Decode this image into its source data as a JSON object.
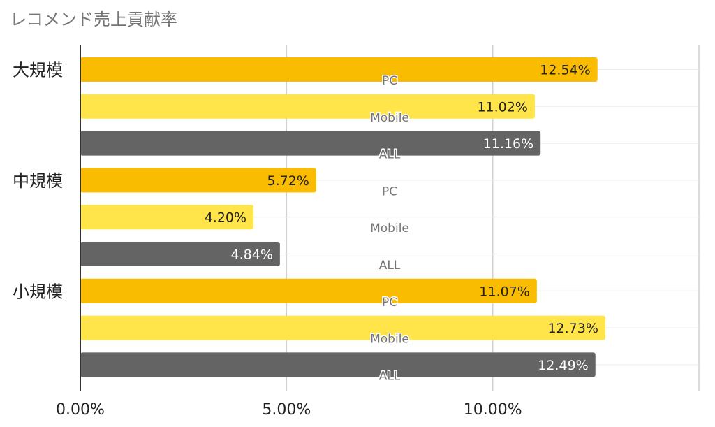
{
  "title": "レコメンド売上貢献率",
  "colors": {
    "PC": "#f9bc00",
    "Mobile": "#ffe44a",
    "ALL": "#646464"
  },
  "chart_data": {
    "type": "bar",
    "orientation": "horizontal",
    "title": "レコメンド売上貢献率",
    "categories": [
      "大規模",
      "中規模",
      "小規模"
    ],
    "series": [
      {
        "name": "PC",
        "values": [
          12.54,
          5.72,
          11.07
        ]
      },
      {
        "name": "Mobile",
        "values": [
          11.02,
          4.2,
          12.73
        ]
      },
      {
        "name": "ALL",
        "values": [
          11.16,
          4.84,
          12.49
        ]
      }
    ],
    "value_labels": [
      [
        "12.54%",
        "11.02%",
        "11.16%"
      ],
      [
        "5.72%",
        "4.20%",
        "4.84%"
      ],
      [
        "11.07%",
        "12.73%",
        "12.49%"
      ]
    ],
    "xlim": [
      0,
      15
    ],
    "xticks": [
      0,
      5,
      10
    ],
    "xtick_labels": [
      "0.00%",
      "5.00%",
      "10.00%"
    ],
    "grid": true,
    "legend": "none"
  }
}
